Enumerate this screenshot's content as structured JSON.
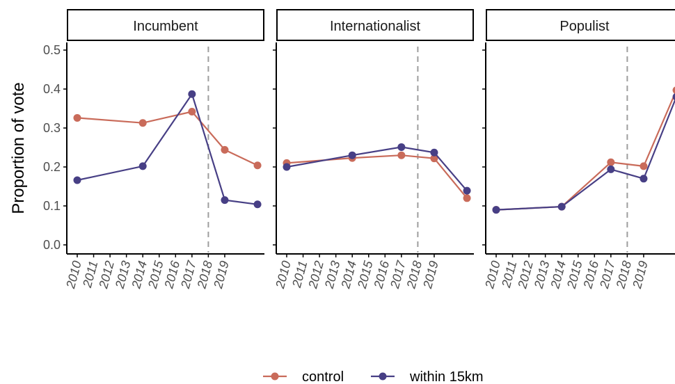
{
  "chart_data": {
    "type": "line",
    "ylabel": "Proportion of vote",
    "ylim": [
      0,
      0.5
    ],
    "yticks": [
      "0.0",
      "0.1",
      "0.2",
      "0.3",
      "0.4",
      "0.5"
    ],
    "x_tick_labels": [
      "2010",
      "2011",
      "2012",
      "2013",
      "2014",
      "2015",
      "2016",
      "2017",
      "2018",
      "2019"
    ],
    "vline_x": 2018,
    "colors": {
      "control": "#c96b5a",
      "within 15km": "#473f85",
      "vline": "#9e9e9e"
    },
    "legend": {
      "position": "bottom",
      "entries": [
        "control",
        "within 15km"
      ]
    },
    "facets": [
      {
        "title": "Incumbent",
        "series": [
          {
            "name": "control",
            "x": [
              2010,
              2014,
              2017,
              2019,
              2021
            ],
            "values": [
              0.326,
              0.313,
              0.342,
              0.244,
              0.204
            ]
          },
          {
            "name": "within 15km",
            "x": [
              2010,
              2014,
              2017,
              2019,
              2021
            ],
            "values": [
              0.166,
              0.202,
              0.387,
              0.115,
              0.104
            ]
          }
        ]
      },
      {
        "title": "Internationalist",
        "series": [
          {
            "name": "control",
            "x": [
              2010,
              2014,
              2017,
              2019,
              2021
            ],
            "values": [
              0.21,
              0.223,
              0.23,
              0.222,
              0.12
            ]
          },
          {
            "name": "within 15km",
            "x": [
              2010,
              2014,
              2017,
              2019,
              2021
            ],
            "values": [
              0.2,
              0.23,
              0.251,
              0.237,
              0.139
            ]
          }
        ]
      },
      {
        "title": "Populist",
        "series": [
          {
            "name": "control",
            "x": [
              2010,
              2014,
              2017,
              2019,
              2021
            ],
            "values": [
              0.09,
              0.098,
              0.212,
              0.202,
              0.397
            ]
          },
          {
            "name": "within 15km",
            "x": [
              2010,
              2014,
              2017,
              2019,
              2021
            ],
            "values": [
              0.09,
              0.098,
              0.194,
              0.17,
              0.38
            ]
          }
        ]
      }
    ]
  }
}
